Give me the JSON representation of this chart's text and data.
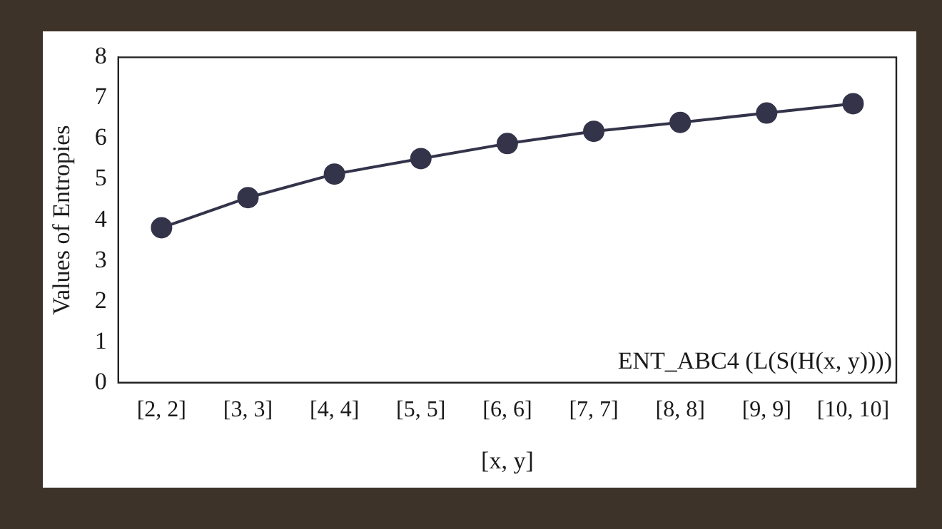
{
  "chart_data": {
    "type": "line",
    "xlabel": "[x, y]",
    "ylabel": "Values of Entropies",
    "categories": [
      "[2, 2]",
      "[3, 3]",
      "[4, 4]",
      "[5, 5]",
      "[6, 6]",
      "[7, 7]",
      "[8, 8]",
      "[9, 9]",
      "[10, 10]"
    ],
    "series": [
      {
        "color": "#33334a",
        "values": [
          3.81,
          4.55,
          5.13,
          5.51,
          5.88,
          6.18,
          6.4,
          6.63,
          6.86
        ]
      }
    ],
    "ylim": [
      0,
      8
    ],
    "yticks": [
      0,
      1,
      2,
      3,
      4,
      5,
      6,
      7,
      8
    ],
    "grid": false,
    "legend": false,
    "marker": "circle",
    "line_style": "solid",
    "annotations": [
      "ENT_ABC4 (L(S(H(x, y))))"
    ]
  }
}
